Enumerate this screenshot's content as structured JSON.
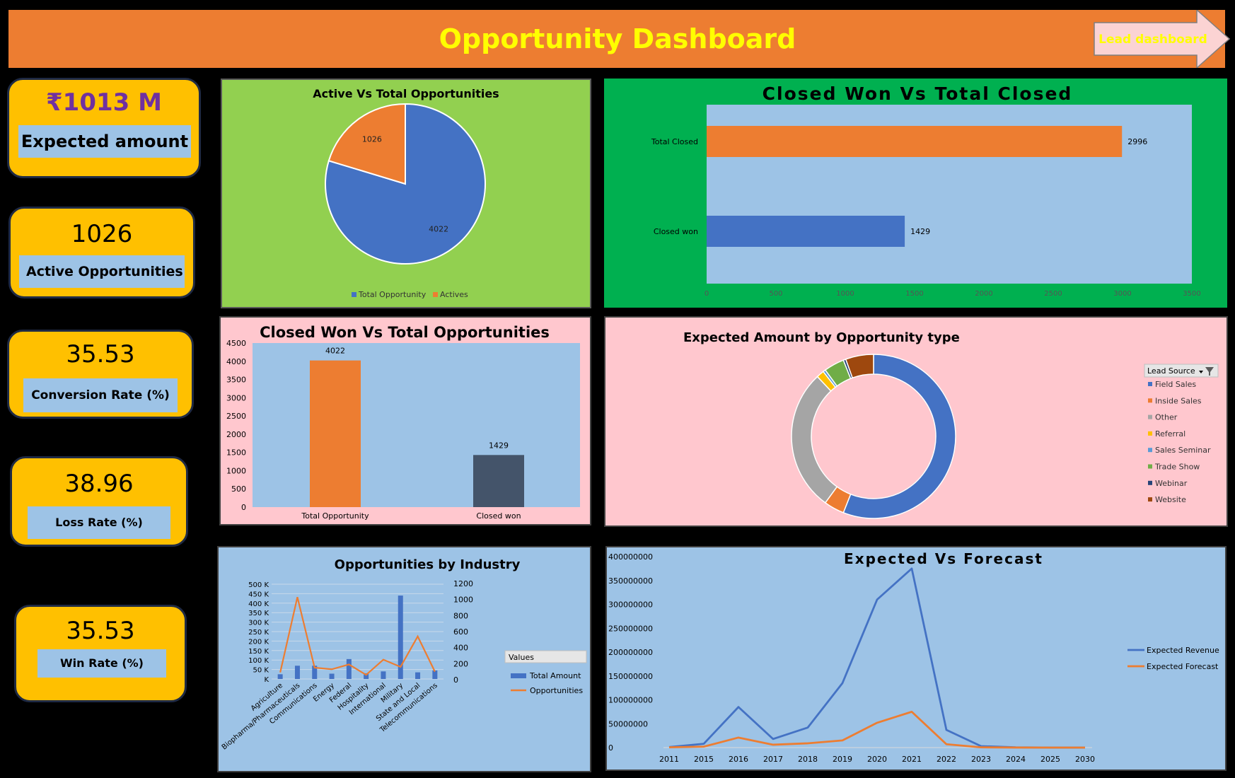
{
  "header": {
    "title": "Opportunity Dashboard",
    "lead_button": "Lead dashboard"
  },
  "kpis": [
    {
      "value": "₹1013 M",
      "label": "Expected amount"
    },
    {
      "value": "1026",
      "label": "Active Opportunities"
    },
    {
      "value": "35.53",
      "label": "Conversion Rate (%)"
    },
    {
      "value": "38.96",
      "label": "Loss Rate (%)"
    },
    {
      "value": "35.53",
      "label": "Win Rate (%)"
    }
  ],
  "colors": {
    "accent": "#ED7D31",
    "blue": "#4472C4",
    "title": "#FFFF00",
    "kpi": "#FFC000"
  },
  "chart_data": [
    {
      "id": "active_vs_total",
      "type": "pie",
      "title": "Active Vs Total Opportunities",
      "categories": [
        "Total Opportunity",
        "Actives"
      ],
      "values": [
        4022,
        1026
      ],
      "colors": [
        "#4472C4",
        "#ED7D31"
      ],
      "legend": "bottom"
    },
    {
      "id": "closed_won_vs_total_closed",
      "type": "bar",
      "orientation": "horizontal",
      "title": "Closed Won Vs Total Closed",
      "categories": [
        "Total Closed",
        "Closed won"
      ],
      "values": [
        2996,
        1429
      ],
      "colors": [
        "#ED7D31",
        "#4472C4"
      ],
      "xlim": [
        0,
        3500
      ],
      "ticks": [
        "0",
        "500",
        "1000",
        "1500",
        "2000",
        "2500",
        "3000",
        "3500"
      ]
    },
    {
      "id": "closed_won_vs_total_opps",
      "type": "bar",
      "title": "Closed Won Vs Total Opportunities",
      "categories": [
        "Total Opportunity",
        "Closed won"
      ],
      "values": [
        4022,
        1429
      ],
      "colors": [
        "#ED7D31",
        "#44546A"
      ],
      "ylim": [
        0,
        4500
      ],
      "ticks": [
        "0",
        "500",
        "1000",
        "1500",
        "2000",
        "2500",
        "3000",
        "3500",
        "4000",
        "4500"
      ]
    },
    {
      "id": "amount_by_type",
      "type": "pie",
      "donut": true,
      "title": "Expected Amount by Opportunity type",
      "legend_title": "Lead Source",
      "categories": [
        "Field Sales",
        "Inside Sales",
        "Other",
        "Referral",
        "Sales Seminar",
        "Trade Show",
        "Webinar",
        "Website"
      ],
      "values": [
        56,
        4,
        28,
        1.5,
        0.5,
        4,
        0.5,
        5.5
      ],
      "colors": [
        "#4472C4",
        "#ED7D31",
        "#A5A5A5",
        "#FFC000",
        "#5B9BD5",
        "#70AD47",
        "#264478",
        "#9E480E"
      ],
      "legend": "right"
    },
    {
      "id": "opps_by_industry",
      "type": "bar",
      "title": "Opportunities by Industry",
      "legend_title": "Values",
      "categories": [
        "Agriculture",
        "Biopharma/Pharmaceuticals",
        "Communications",
        "Energy",
        "Federal",
        "Hospitality",
        "International",
        "Military",
        "State and Local",
        "Telecommunications"
      ],
      "series": [
        {
          "name": "Total Amount",
          "type": "bar",
          "axis": "left",
          "values": [
            25000,
            70000,
            70000,
            28000,
            105000,
            30000,
            40000,
            440000,
            35000,
            45000
          ]
        },
        {
          "name": "Opportunities",
          "type": "line",
          "axis": "right",
          "values": [
            90,
            1030,
            150,
            130,
            190,
            60,
            250,
            160,
            540,
            100
          ]
        }
      ],
      "left_ticks": [
        "K",
        "50 K",
        "100 K",
        "150 K",
        "200 K",
        "250 K",
        "300 K",
        "350 K",
        "400 K",
        "450 K",
        "500 K"
      ],
      "right_ticks": [
        "0",
        "200",
        "400",
        "600",
        "800",
        "1000",
        "1200"
      ],
      "ylim_left": [
        0,
        500000
      ],
      "ylim_right": [
        0,
        1200
      ]
    },
    {
      "id": "expected_vs_forecast",
      "type": "line",
      "title": "Expected Vs Forecast",
      "x": [
        "2011",
        "2015",
        "2016",
        "2017",
        "2018",
        "2019",
        "2020",
        "2021",
        "2022",
        "2023",
        "2024",
        "2025",
        "2030"
      ],
      "series": [
        {
          "name": "Expected Revenue",
          "color": "#4472C4",
          "values": [
            1000000,
            8000000,
            85000000,
            18000000,
            42000000,
            135000000,
            310000000,
            375000000,
            37000000,
            3000000,
            500000,
            0,
            0
          ]
        },
        {
          "name": "Expected Forecast",
          "color": "#ED7D31",
          "values": [
            500000,
            2000000,
            21000000,
            6000000,
            9000000,
            15000000,
            52000000,
            75000000,
            7000000,
            600000,
            100000,
            0,
            0
          ]
        }
      ],
      "ylim": [
        0,
        400000000
      ],
      "ticks": [
        "0",
        "50000000",
        "100000000",
        "150000000",
        "200000000",
        "250000000",
        "300000000",
        "350000000",
        "400000000"
      ],
      "legend": "right"
    }
  ]
}
